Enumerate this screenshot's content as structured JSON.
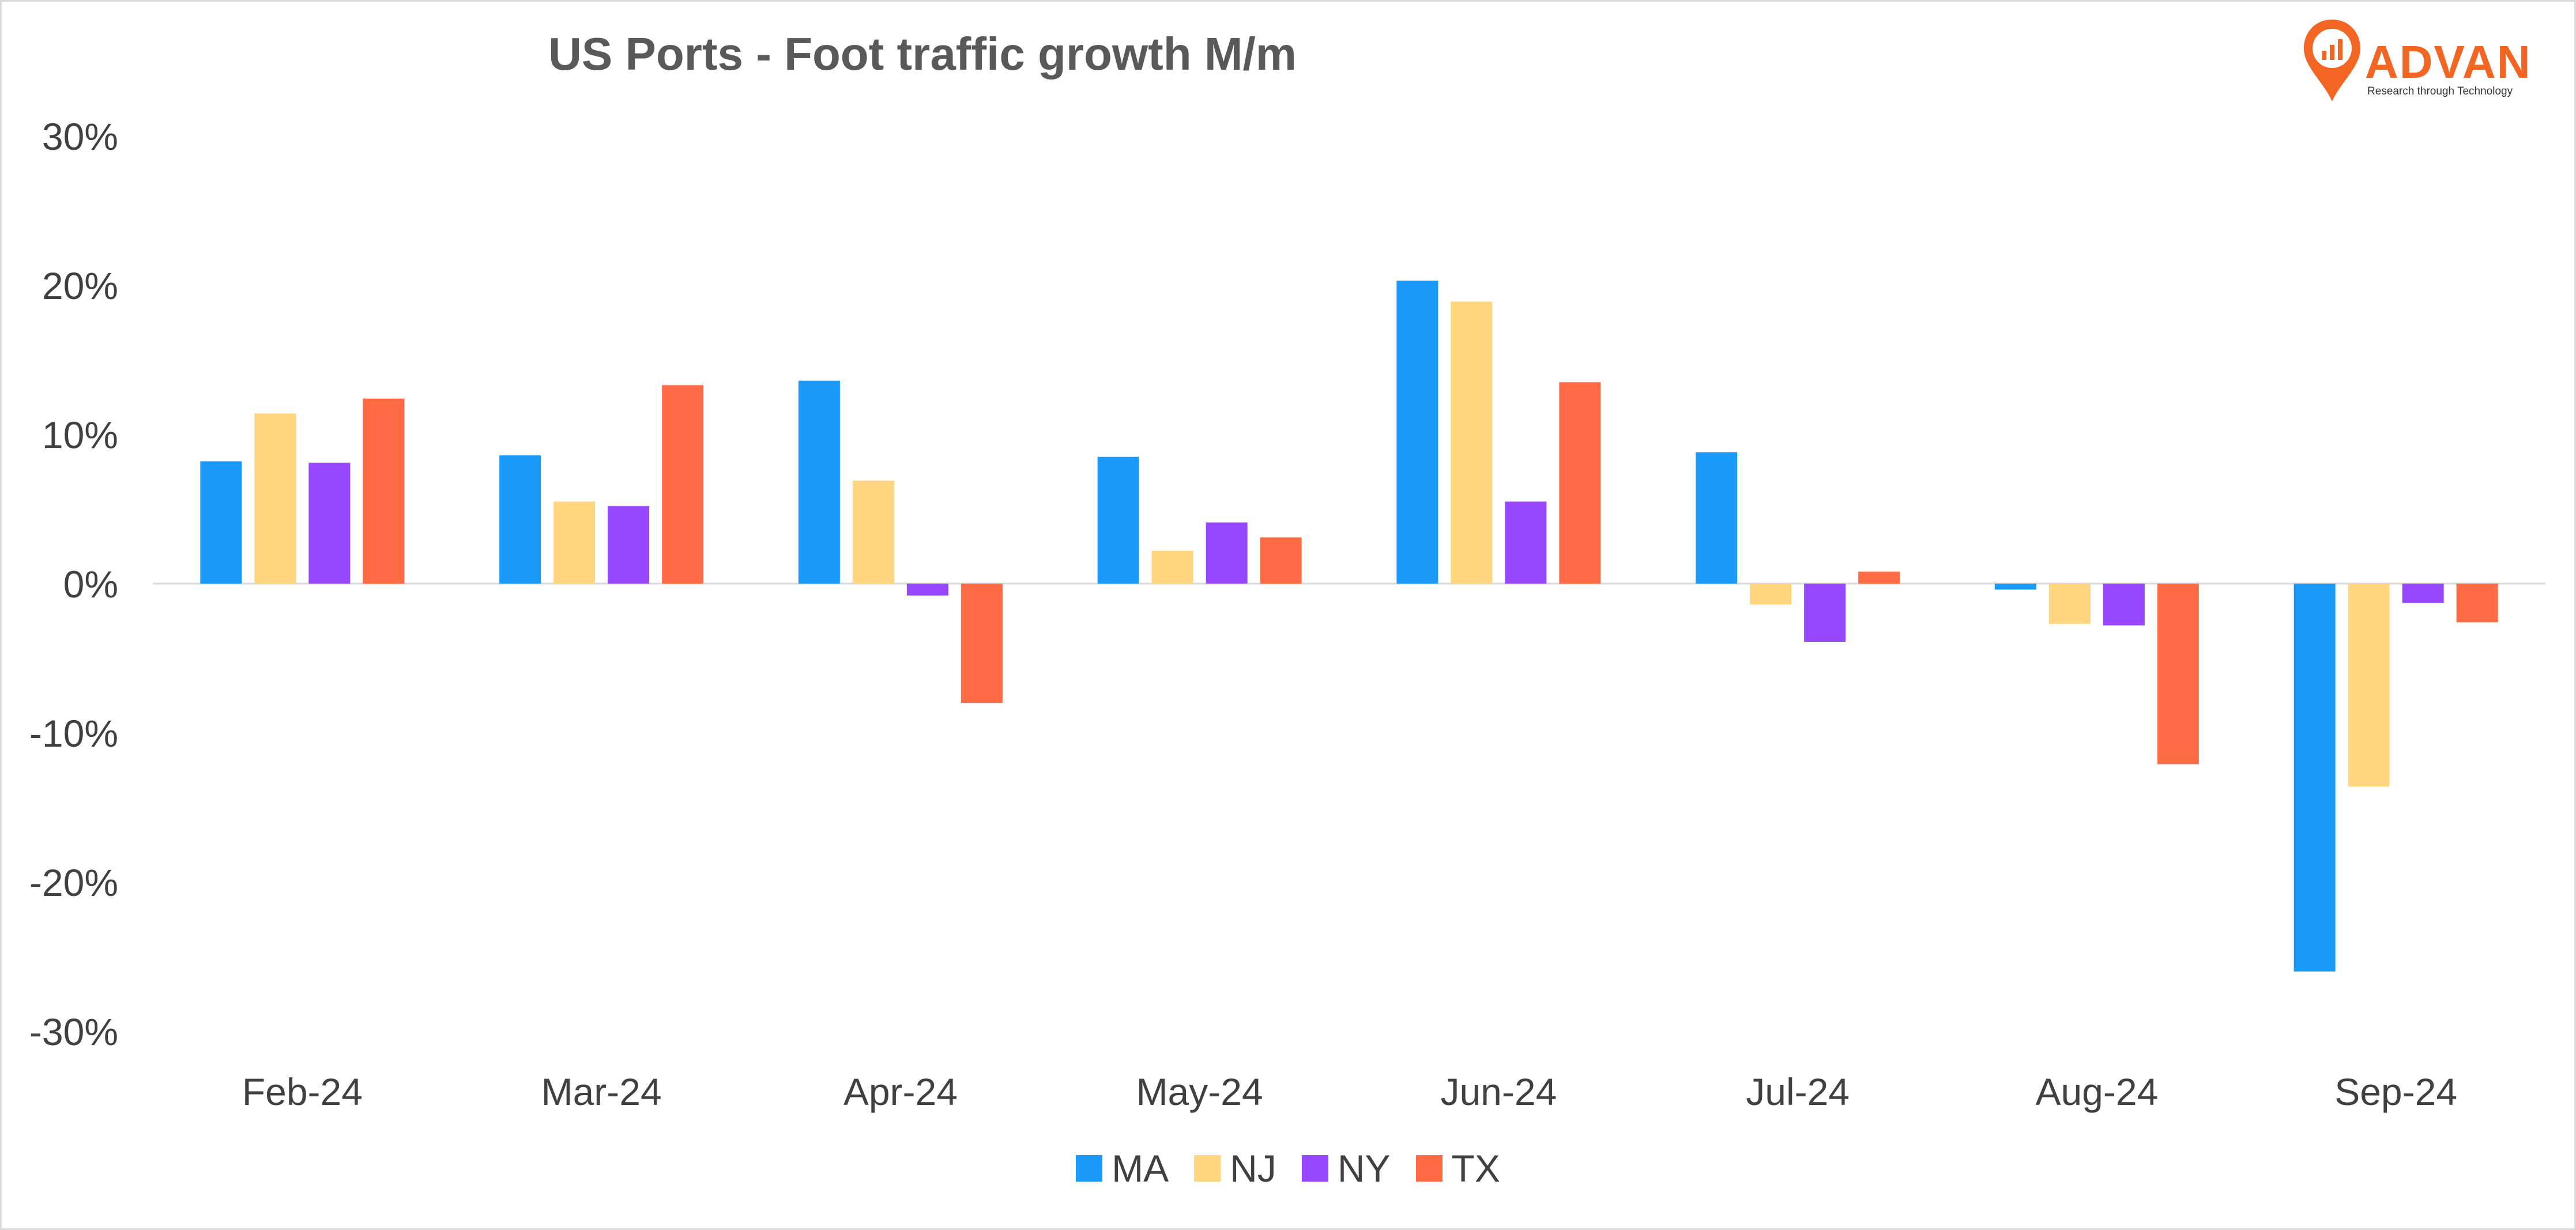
{
  "chart_data": {
    "type": "bar",
    "title": "US Ports - Foot traffic growth M/m",
    "categories": [
      "Feb-24",
      "Mar-24",
      "Apr-24",
      "May-24",
      "Jun-24",
      "Jul-24",
      "Aug-24",
      "Sep-24"
    ],
    "series": [
      {
        "name": "MA",
        "color": "#1a9bfc",
        "values": [
          8.2,
          8.6,
          13.6,
          8.5,
          20.3,
          8.8,
          -0.4,
          -26.0
        ]
      },
      {
        "name": "NJ",
        "color": "#ffd580",
        "values": [
          11.4,
          5.5,
          6.9,
          2.2,
          18.9,
          -1.4,
          -2.7,
          -13.6
        ]
      },
      {
        "name": "NY",
        "color": "#9747ff",
        "values": [
          8.1,
          5.2,
          -0.8,
          4.1,
          5.5,
          -3.9,
          -2.8,
          -1.3
        ]
      },
      {
        "name": "TX",
        "color": "#ff6b45",
        "values": [
          12.4,
          13.3,
          -8.0,
          3.1,
          13.5,
          0.8,
          -12.1,
          -2.6
        ]
      }
    ],
    "yticks": [
      "30%",
      "20%",
      "10%",
      "0%",
      "-10%",
      "-20%",
      "-30%"
    ],
    "ylim": [
      -30,
      30
    ],
    "xlabel": "",
    "ylabel": "",
    "grid": false,
    "legend_position": "bottom"
  },
  "logo": {
    "name": "ADVAN",
    "tagline": "Research through Technology",
    "color": "#f26522"
  }
}
